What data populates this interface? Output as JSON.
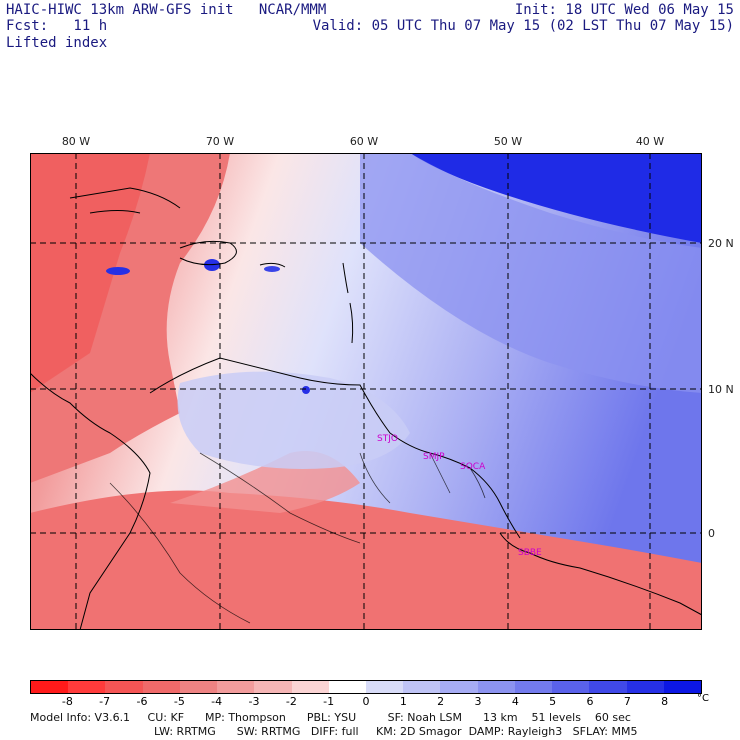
{
  "header": {
    "title": "HAIC-HIWC 13km ARW-GFS init   NCAR/MMM",
    "fcst": "Fcst:   11 h",
    "init": "Init: 18 UTC Wed 06 May 15",
    "valid": "Valid: 05 UTC Thu 07 May 15 (02 LST Thu 07 May 15)",
    "field": "Lifted index"
  },
  "map": {
    "lon_labels": [
      "80 W",
      "70 W",
      "60 W",
      "50 W",
      "40 W"
    ],
    "lat_labels": [
      "20 N",
      "10 N",
      "0"
    ],
    "stations": [
      "STJO",
      "SMJP",
      "SOCA",
      "SBBE"
    ]
  },
  "colorbar": {
    "ticks": [
      "-8",
      "-7",
      "-6",
      "-5",
      "-4",
      "-3",
      "-2",
      "-1",
      "0",
      "1",
      "2",
      "3",
      "4",
      "5",
      "6",
      "7",
      "8"
    ],
    "unit": "°C",
    "colors": [
      "#ff1a1a",
      "#ff3b3b",
      "#f55555",
      "#f06a6a",
      "#ee8383",
      "#f29c9c",
      "#f6b6b6",
      "#fbd4d4",
      "#ffffff",
      "#d8dcf8",
      "#bfc4f6",
      "#a6acf4",
      "#8c93f0",
      "#737bed",
      "#5a62ea",
      "#4049e8",
      "#2630e6",
      "#0c17e4"
    ]
  },
  "footer": {
    "line1": "Model Info: V3.6.1     CU: KF      MP: Thompson      PBL: YSU         SF: Noah LSM      13 km    51 levels    60 sec",
    "line2": "LW: RRTMG      SW: RRTMG   DIFF: full     KM: 2D Smagor  DAMP: Rayleigh3   SFLAY: MM5"
  }
}
